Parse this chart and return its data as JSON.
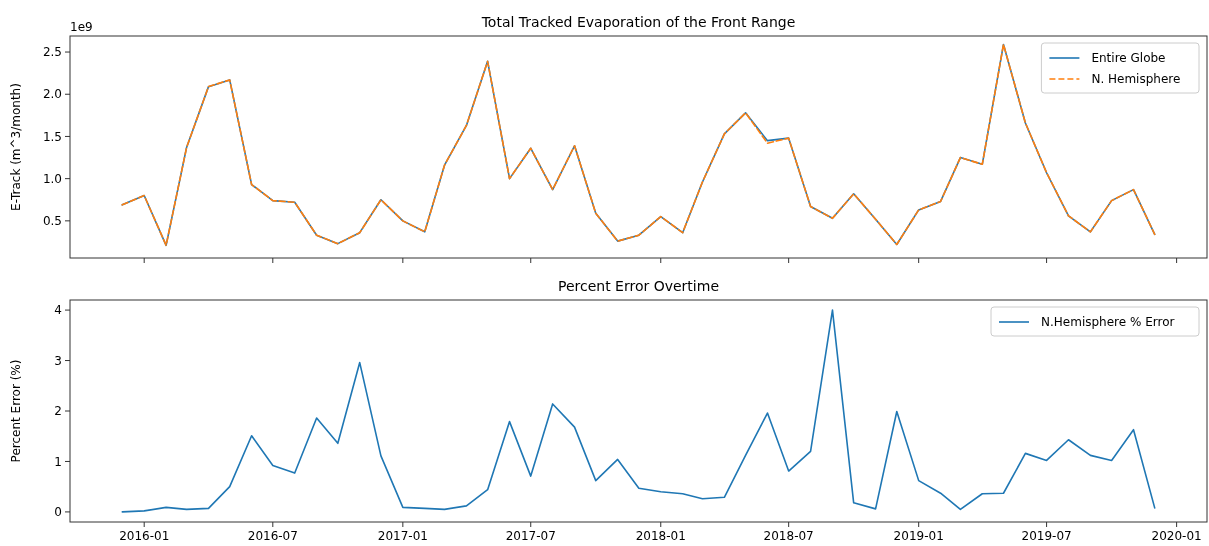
{
  "chart_data": [
    {
      "type": "line",
      "title": "Total Tracked Evaporation of the Front Range",
      "ylabel": "E-Track (m^3/month)",
      "annotations": [
        "1e9"
      ],
      "x": [
        "2015-12",
        "2016-01",
        "2016-02",
        "2016-03",
        "2016-04",
        "2016-05",
        "2016-06",
        "2016-07",
        "2016-08",
        "2016-09",
        "2016-10",
        "2016-11",
        "2016-12",
        "2017-01",
        "2017-02",
        "2017-03",
        "2017-04",
        "2017-05",
        "2017-06",
        "2017-07",
        "2017-08",
        "2017-09",
        "2017-10",
        "2017-11",
        "2017-12",
        "2018-01",
        "2018-02",
        "2018-03",
        "2018-04",
        "2018-05",
        "2018-06",
        "2018-07",
        "2018-08",
        "2018-09",
        "2018-10",
        "2018-11",
        "2018-12",
        "2019-01",
        "2019-02",
        "2019-03",
        "2019-04",
        "2019-05",
        "2019-06",
        "2019-07",
        "2019-08",
        "2019-09",
        "2019-10",
        "2019-11",
        "2019-12"
      ],
      "series": [
        {
          "name": "Entire Globe",
          "color": "#1f77b4",
          "line_style": "solid",
          "values": [
            0.69,
            0.8,
            0.21,
            1.37,
            2.09,
            2.17,
            0.93,
            0.74,
            0.72,
            0.33,
            0.23,
            0.36,
            0.75,
            0.5,
            0.37,
            1.16,
            1.63,
            2.39,
            1.0,
            1.36,
            0.87,
            1.39,
            0.59,
            0.26,
            0.33,
            0.55,
            0.36,
            0.96,
            1.53,
            1.78,
            1.45,
            1.48,
            0.67,
            0.53,
            0.82,
            0.52,
            0.22,
            0.63,
            0.73,
            1.25,
            1.17,
            2.59,
            1.66,
            1.07,
            0.56,
            0.37,
            0.74,
            0.87,
            0.34
          ]
        },
        {
          "name": "N. Hemisphere",
          "color": "#ff7f0e",
          "line_style": "dashed",
          "values": [
            0.69,
            0.8,
            0.21,
            1.37,
            2.09,
            2.17,
            0.93,
            0.74,
            0.72,
            0.33,
            0.23,
            0.36,
            0.75,
            0.5,
            0.37,
            1.16,
            1.63,
            2.39,
            1.0,
            1.36,
            0.87,
            1.39,
            0.59,
            0.26,
            0.33,
            0.55,
            0.36,
            0.96,
            1.53,
            1.78,
            1.42,
            1.48,
            0.67,
            0.53,
            0.82,
            0.52,
            0.22,
            0.63,
            0.73,
            1.25,
            1.17,
            2.59,
            1.66,
            1.07,
            0.56,
            0.37,
            0.74,
            0.87,
            0.34
          ]
        }
      ],
      "xlim": [
        "2015-09-18",
        "2020-02-13"
      ],
      "xticks": [
        "2016-01",
        "2016-07",
        "2017-01",
        "2017-07",
        "2018-01",
        "2018-07",
        "2019-01",
        "2019-07",
        "2020-01"
      ],
      "ylim": [
        0.06,
        2.69
      ],
      "yticks": [
        0.5,
        {
          "value": 1,
          "label": "1.0"
        },
        1.5,
        {
          "value": 2,
          "label": "2.0"
        },
        2.5
      ],
      "tick_labels": "y",
      "legend": "top right",
      "grid": false
    },
    {
      "type": "line",
      "title": "Percent Error Overtime",
      "ylabel": "Percent Error (%)",
      "x": [
        "2015-12",
        "2016-01",
        "2016-02",
        "2016-03",
        "2016-04",
        "2016-05",
        "2016-06",
        "2016-07",
        "2016-08",
        "2016-09",
        "2016-10",
        "2016-11",
        "2016-12",
        "2017-01",
        "2017-02",
        "2017-03",
        "2017-04",
        "2017-05",
        "2017-06",
        "2017-07",
        "2017-08",
        "2017-09",
        "2017-10",
        "2017-11",
        "2017-12",
        "2018-01",
        "2018-02",
        "2018-03",
        "2018-04",
        "2018-05",
        "2018-06",
        "2018-07",
        "2018-08",
        "2018-09",
        "2018-10",
        "2018-11",
        "2018-12",
        "2019-01",
        "2019-02",
        "2019-03",
        "2019-04",
        "2019-05",
        "2019-06",
        "2019-07",
        "2019-08",
        "2019-09",
        "2019-10",
        "2019-11",
        "2019-12"
      ],
      "series": [
        {
          "name": "N.Hemisphere % Error",
          "color": "#1f77b4",
          "line_style": "solid",
          "values": [
            0.0,
            0.02,
            0.09,
            0.05,
            0.07,
            0.5,
            1.51,
            0.92,
            0.77,
            1.86,
            1.36,
            2.96,
            1.11,
            0.09,
            0.07,
            0.05,
            0.12,
            0.44,
            1.79,
            0.71,
            2.14,
            1.68,
            0.62,
            1.04,
            0.47,
            0.4,
            0.36,
            0.26,
            0.29,
            1.12,
            1.96,
            0.81,
            1.2,
            4.0,
            0.18,
            0.06,
            1.99,
            0.62,
            0.37,
            0.05,
            0.36,
            0.37,
            1.16,
            1.02,
            1.43,
            1.12,
            1.02,
            1.63,
            0.08
          ]
        }
      ],
      "xlim": [
        "2015-09-18",
        "2020-02-13"
      ],
      "xticks": [
        "2016-01",
        "2016-07",
        "2017-01",
        "2017-07",
        "2018-01",
        "2018-07",
        "2019-01",
        "2019-07",
        "2020-01"
      ],
      "ylim": [
        -0.2,
        4.2
      ],
      "yticks": [
        0,
        1,
        2,
        3,
        4
      ],
      "legend": "top right",
      "grid": false
    }
  ]
}
